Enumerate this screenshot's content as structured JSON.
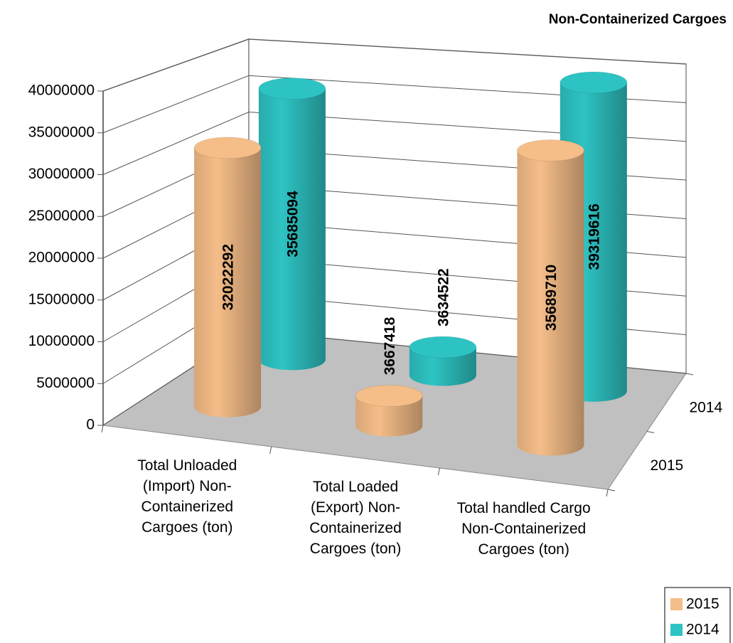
{
  "chart_data": {
    "type": "cylinder3d",
    "title": "Non-Containerized Cargoes",
    "categories": [
      "Total Unloaded (Import) Non-Containerized Cargoes (ton)",
      "Total Loaded (Export) Non-Containerized Cargoes (ton)",
      "Total handled Cargo Non-Containerized Cargoes (ton)"
    ],
    "series": [
      {
        "name": "2015",
        "color": "#f5bd88",
        "values": [
          32022292,
          3667418,
          35689710
        ]
      },
      {
        "name": "2014",
        "color": "#2ec3c3",
        "values": [
          35685094,
          3634522,
          39319616
        ]
      }
    ],
    "ylim": [
      0,
      40000000
    ],
    "yticks": [
      0,
      5000000,
      10000000,
      15000000,
      20000000,
      25000000,
      30000000,
      35000000,
      40000000
    ],
    "grid": true,
    "legend": "bottom-right"
  }
}
